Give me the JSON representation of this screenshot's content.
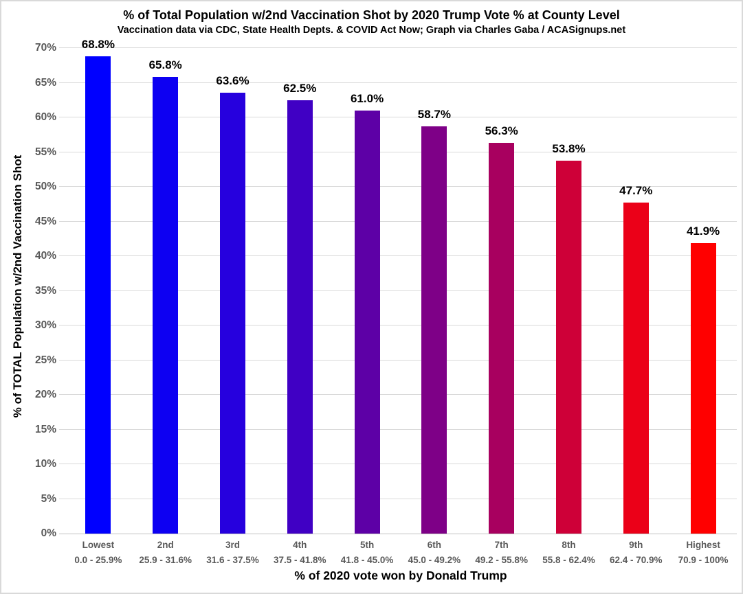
{
  "chart_data": {
    "type": "bar",
    "title": "% of Total Population w/2nd Vaccination Shot by 2020 Trump Vote % at County Level",
    "subtitle": "Vaccination data via CDC, State Health Depts. & COVID Act Now; Graph via Charles Gaba / ACASignups.net",
    "xlabel": "% of 2020 vote won by Donald Trump",
    "ylabel": "% of TOTAL Population w/2nd Vaccination Shot",
    "ylim": [
      0,
      70
    ],
    "grid": "horizontal",
    "legend": "none",
    "categories": [
      {
        "label": "Lowest",
        "range": "0.0 - 25.9%"
      },
      {
        "label": "2nd",
        "range": "25.9 - 31.6%"
      },
      {
        "label": "3rd",
        "range": "31.6 - 37.5%"
      },
      {
        "label": "4th",
        "range": "37.5 - 41.8%"
      },
      {
        "label": "5th",
        "range": "41.8 - 45.0%"
      },
      {
        "label": "6th",
        "range": "45.0 - 49.2%"
      },
      {
        "label": "7th",
        "range": "49.2 - 55.8%"
      },
      {
        "label": "8th",
        "range": "55.8 - 62.4%"
      },
      {
        "label": "9th",
        "range": "62.4 - 70.9%"
      },
      {
        "label": "Highest",
        "range": "70.9 - 100%"
      }
    ],
    "values": [
      68.8,
      65.8,
      63.6,
      62.5,
      61.0,
      58.7,
      56.3,
      53.8,
      47.7,
      41.9
    ],
    "data_labels": [
      "68.8%",
      "65.8%",
      "63.6%",
      "62.5%",
      "61.0%",
      "58.7%",
      "56.3%",
      "53.8%",
      "47.7%",
      "41.9%"
    ],
    "bar_colors": [
      "#0000ff",
      "#0d00f2",
      "#2600de",
      "#4000c4",
      "#5d00a6",
      "#7e0087",
      "#a8005f",
      "#ce0038",
      "#eb0018",
      "#ff0000"
    ],
    "yticks": [
      {
        "value": 0,
        "label": "0%"
      },
      {
        "value": 5,
        "label": "5%"
      },
      {
        "value": 10,
        "label": "10%"
      },
      {
        "value": 15,
        "label": "15%"
      },
      {
        "value": 20,
        "label": "20%"
      },
      {
        "value": 25,
        "label": "25%"
      },
      {
        "value": 30,
        "label": "30%"
      },
      {
        "value": 35,
        "label": "35%"
      },
      {
        "value": 40,
        "label": "40%"
      },
      {
        "value": 45,
        "label": "45%"
      },
      {
        "value": 50,
        "label": "50%"
      },
      {
        "value": 55,
        "label": "55%"
      },
      {
        "value": 60,
        "label": "60%"
      },
      {
        "value": 65,
        "label": "65%"
      },
      {
        "value": 70,
        "label": "70%"
      }
    ]
  },
  "colors": {
    "gridline": "#d9d9d9",
    "baseline": "#bfbfbf",
    "tick_text": "#595959",
    "category_text": "#595959",
    "value_text": "#000000",
    "title_text": "#000000"
  }
}
